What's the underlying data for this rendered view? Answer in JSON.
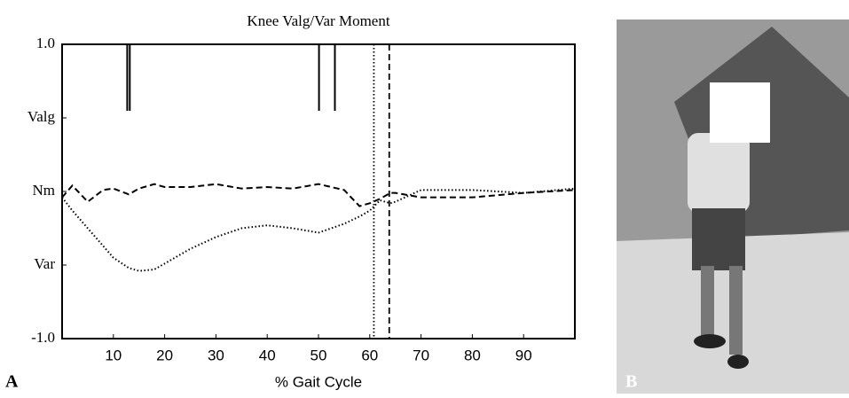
{
  "chart_data": {
    "type": "line",
    "title": "Knee Valg/Var Moment",
    "x_label": "% Gait Cycle",
    "panel_label": "A",
    "x": [
      0,
      2,
      5,
      8,
      10,
      13,
      15,
      18,
      20,
      25,
      30,
      35,
      40,
      45,
      50,
      55,
      58,
      60,
      62,
      64,
      65,
      70,
      80,
      90,
      100
    ],
    "series": [
      {
        "color": "#000000",
        "style": "dashed",
        "values": [
          -0.04,
          0.04,
          -0.07,
          0.01,
          0.02,
          -0.02,
          0.02,
          0.05,
          0.03,
          0.03,
          0.05,
          0.02,
          0.03,
          0.02,
          0.05,
          0.01,
          -0.1,
          -0.08,
          -0.05,
          -0.01,
          -0.01,
          -0.04,
          -0.04,
          -0.01,
          0.01
        ]
      },
      {
        "color": "#000000",
        "style": "dotted",
        "values": [
          -0.04,
          -0.13,
          -0.25,
          -0.37,
          -0.45,
          -0.52,
          -0.54,
          -0.53,
          -0.49,
          -0.39,
          -0.31,
          -0.25,
          -0.23,
          -0.25,
          -0.28,
          -0.22,
          -0.17,
          -0.13,
          -0.06,
          -0.08,
          -0.07,
          0.01,
          0.01,
          -0.01,
          0.02
        ]
      }
    ],
    "event_lines": {
      "solid": [
        12.7,
        13.2,
        50.1,
        53.2
      ],
      "dotted": [
        60.8
      ],
      "dashed": [
        63.8
      ]
    },
    "xlim": [
      0,
      100
    ],
    "xticks": [
      10,
      20,
      30,
      40,
      50,
      60,
      70,
      80,
      90
    ],
    "ylim": [
      -1,
      1
    ],
    "yticks": [
      {
        "value": -1,
        "label": "-1.0"
      },
      {
        "value": -0.5,
        "label": "Var"
      },
      {
        "value": 0,
        "label": "Nm"
      },
      {
        "value": 0.5,
        "label": "Valg"
      },
      {
        "value": 1,
        "label": "1.0"
      }
    ],
    "grid": false
  },
  "photo": {
    "label": "B"
  }
}
